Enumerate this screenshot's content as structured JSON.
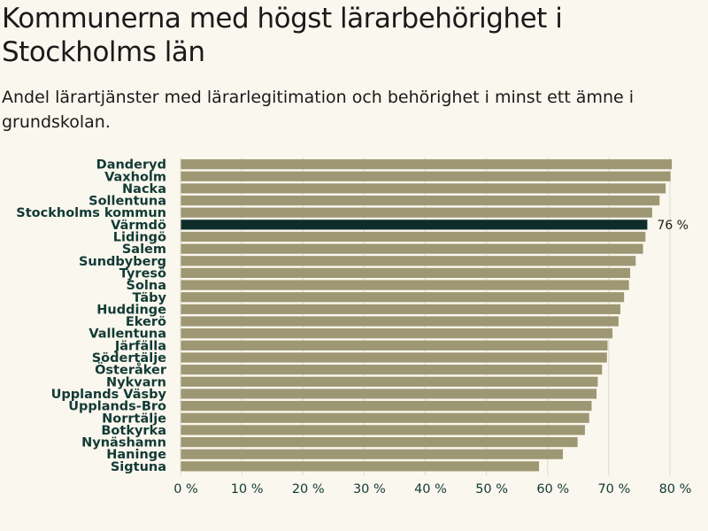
{
  "title": "Kommunerna med högst lärarbehörighet i Stockholms län",
  "subtitle": "Andel lärartjänster med lärarlegitimation och behörighet i minst ett ämne i grundskolan.",
  "colors": {
    "bar": "#9e9773",
    "highlight": "#0e2d2a",
    "grid": "#dcd8cc",
    "background": "#faf7ee",
    "text": "#123a35"
  },
  "chart_data": {
    "type": "bar",
    "orientation": "horizontal",
    "title": "Kommunerna med högst lärarbehörighet i Stockholms län",
    "subtitle": "Andel lärartjänster med lärarlegitimation och behörighet i minst ett ämne i grundskolan.",
    "xlabel": "",
    "ylabel": "",
    "xlim": [
      0,
      80
    ],
    "xticks": [
      0,
      10,
      20,
      30,
      40,
      50,
      60,
      70,
      80
    ],
    "tick_suffix": " %",
    "grid": true,
    "highlight": "Värmdö",
    "data_labels": [
      {
        "category": "Värmdö",
        "text": "76 %"
      }
    ],
    "categories": [
      "Danderyd",
      "Vaxholm",
      "Nacka",
      "Sollentuna",
      "Stockholms kommun",
      "Värmdö",
      "Lidingö",
      "Salem",
      "Sundbyberg",
      "Tyresö",
      "Solna",
      "Täby",
      "Huddinge",
      "Ekerö",
      "Vallentuna",
      "Järfälla",
      "Södertälje",
      "Österåker",
      "Nykvarn",
      "Upplands Väsby",
      "Upplands-Bro",
      "Norrtälje",
      "Botkyrka",
      "Nynäshamn",
      "Haninge",
      "Sigtuna"
    ],
    "values": [
      80.3,
      80.1,
      79.3,
      78.3,
      77.1,
      76.3,
      76.0,
      75.6,
      74.4,
      73.5,
      73.3,
      72.5,
      71.9,
      71.6,
      70.6,
      69.8,
      69.7,
      68.9,
      68.2,
      68.0,
      67.2,
      66.8,
      66.1,
      64.9,
      62.5,
      58.6
    ]
  }
}
